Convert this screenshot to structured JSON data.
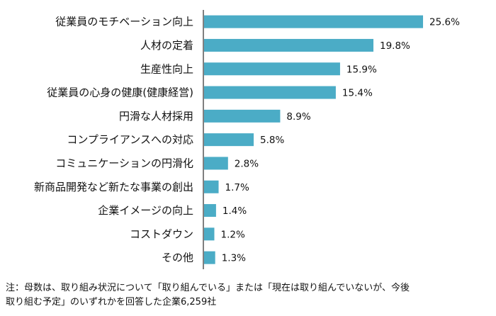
{
  "chart_data": {
    "type": "bar",
    "orientation": "horizontal",
    "categories": [
      "従業員のモチベーション向上",
      "人材の定着",
      "生産性向上",
      "従業員の心身の健康(健康経営)",
      "円滑な人材採用",
      "コンプライアンスへの対応",
      "コミュニケーションの円滑化",
      "新商品開発など新たな事業の創出",
      "企業イメージの向上",
      "コストダウン",
      "その他"
    ],
    "values": [
      25.6,
      19.8,
      15.9,
      15.4,
      8.9,
      5.8,
      2.8,
      1.7,
      1.4,
      1.2,
      1.3
    ],
    "value_labels": [
      "25.6%",
      "19.8%",
      "15.9%",
      "15.4%",
      "8.9%",
      "5.8%",
      "2.8%",
      "1.7%",
      "1.4%",
      "1.2%",
      "1.3%"
    ],
    "xlim": [
      0,
      28
    ],
    "grid": false,
    "bar_color": "#4bacc6",
    "axis_color": "#000000"
  },
  "footnote": {
    "line1": "注：母数は、取り組み状況について「取り組んでいる」または「現在は取り組んでいないが、今後",
    "line2": "取り組む予定」のいずれかを回答した企業6,259社"
  }
}
